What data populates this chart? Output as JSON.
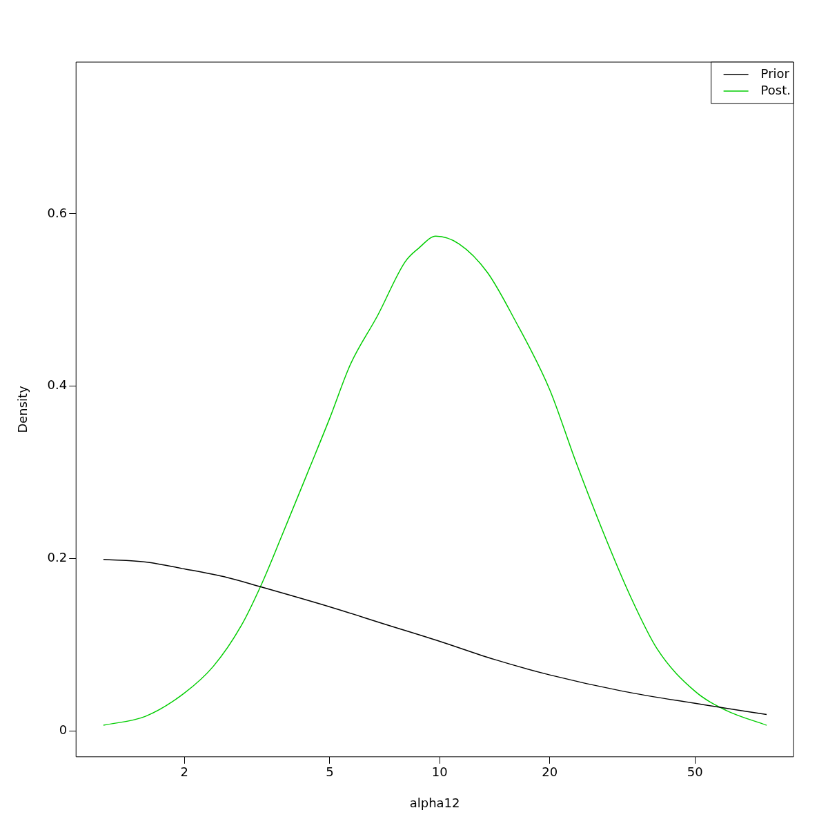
{
  "chart_data": {
    "type": "line",
    "xlabel": "alpha12",
    "ylabel": "Density",
    "log": "x",
    "xlim": [
      1.01,
      93
    ],
    "xticks": [
      2,
      5,
      10,
      20,
      50
    ],
    "ylim": [
      -0.03,
      0.776
    ],
    "yticks": [
      0.0,
      0.2,
      0.4,
      0.6
    ],
    "grid": false,
    "legend": "top right",
    "marker": "none",
    "line_style": "solid",
    "series": [
      {
        "name": "Prior",
        "color": "#000000",
        "x": [
          1.2,
          1.565,
          2,
          2.62,
          3.25,
          5,
          7.06,
          10,
          14.1,
          20,
          31.8,
          50,
          78.5
        ],
        "values": [
          0.199,
          0.196,
          0.188,
          0.178,
          0.167,
          0.144,
          0.124,
          0.104,
          0.083,
          0.065,
          0.046,
          0.032,
          0.019
        ]
      },
      {
        "name": "Post.",
        "color": "#00cd00",
        "x": [
          1.2,
          1.565,
          2,
          2.4,
          2.86,
          3.25,
          3.7,
          4.4,
          5,
          5.69,
          6.76,
          8.03,
          8.75,
          9.75,
          11.3,
          13.5,
          16,
          20,
          23.5,
          28,
          33.2,
          39.4,
          50,
          60.7,
          78.5
        ],
        "values": [
          0.0066,
          0.017,
          0.044,
          0.075,
          0.122,
          0.17,
          0.227,
          0.305,
          0.363,
          0.425,
          0.482,
          0.544,
          0.56,
          0.574,
          0.565,
          0.532,
          0.478,
          0.396,
          0.314,
          0.231,
          0.157,
          0.095,
          0.046,
          0.024,
          0.0066
        ]
      }
    ]
  }
}
